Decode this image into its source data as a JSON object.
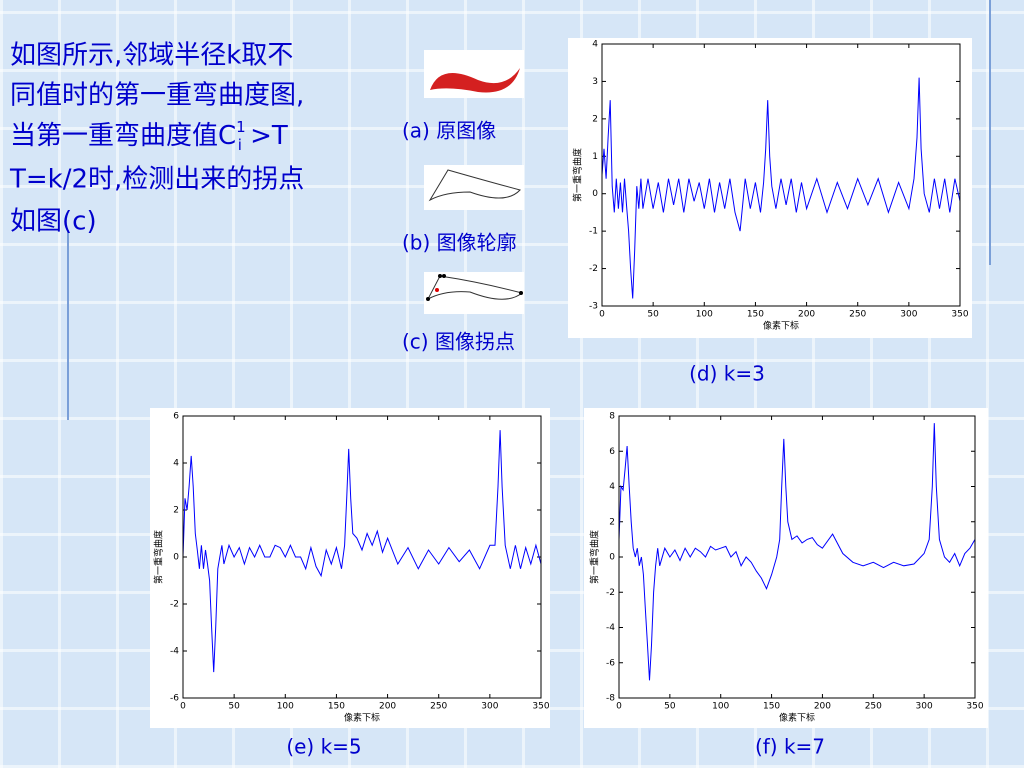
{
  "text": {
    "lines": [
      "如图所示,邻域半径k取不",
      "同值时的第一重弯曲度图,",
      "当第一重弯曲度值C",
      "T=k/2时,检测出来的拐点",
      "如图(c)"
    ],
    "sup": "1",
    "sub": "i",
    "line3_tail": " >T"
  },
  "images": [
    {
      "caption": "(a) 原图像"
    },
    {
      "caption": "(b) 图像轮廓"
    },
    {
      "caption": "(c) 图像拐点"
    }
  ],
  "chart_data": [
    {
      "type": "line",
      "caption": "(d) k=3",
      "xlabel": "像素下标",
      "ylabel": "第一重弯曲度",
      "color": "#0000ff",
      "xlim": [
        0,
        350
      ],
      "xticks": [
        0,
        50,
        100,
        150,
        200,
        250,
        300,
        350
      ],
      "ylim": [
        -3,
        4
      ],
      "yticks": [
        -3,
        -2,
        -1,
        0,
        1,
        2,
        3,
        4
      ],
      "x": [
        0,
        2,
        4,
        6,
        8,
        10,
        12,
        14,
        16,
        18,
        20,
        22,
        24,
        26,
        28,
        30,
        32,
        34,
        36,
        38,
        40,
        45,
        50,
        55,
        60,
        65,
        70,
        75,
        80,
        85,
        90,
        95,
        100,
        105,
        110,
        115,
        120,
        125,
        130,
        135,
        140,
        145,
        150,
        155,
        158,
        160,
        162,
        164,
        166,
        170,
        175,
        180,
        185,
        190,
        195,
        200,
        210,
        220,
        230,
        240,
        250,
        260,
        270,
        280,
        290,
        300,
        305,
        308,
        310,
        312,
        315,
        320,
        325,
        330,
        335,
        340,
        345,
        350
      ],
      "values": [
        0.5,
        1.2,
        0.4,
        1.5,
        2.5,
        0.2,
        -0.5,
        0.4,
        -0.4,
        0.3,
        -0.5,
        0.4,
        -0.3,
        -1,
        -2,
        -2.8,
        -1.5,
        0.2,
        -0.4,
        0.4,
        -0.4,
        0.4,
        -0.4,
        0.3,
        -0.5,
        0.4,
        -0.3,
        0.4,
        -0.5,
        0.4,
        -0.2,
        0.3,
        -0.4,
        0.4,
        -0.5,
        0.3,
        -0.4,
        0.4,
        -0.5,
        -1,
        0.4,
        -0.4,
        0.3,
        -0.5,
        0.3,
        1.2,
        2.5,
        1,
        0.2,
        -0.4,
        0.4,
        -0.3,
        0.4,
        -0.5,
        0.3,
        -0.4,
        0.4,
        -0.5,
        0.3,
        -0.4,
        0.4,
        -0.3,
        0.4,
        -0.5,
        0.3,
        -0.4,
        0.4,
        1.5,
        3.1,
        1.2,
        0,
        -0.5,
        0.4,
        -0.4,
        0.4,
        -0.5,
        0.4,
        -0.2
      ]
    },
    {
      "type": "line",
      "caption": "(e) k=5",
      "xlabel": "像素下标",
      "ylabel": "第一重弯曲度",
      "color": "#0000ff",
      "xlim": [
        0,
        350
      ],
      "xticks": [
        0,
        50,
        100,
        150,
        200,
        250,
        300,
        350
      ],
      "ylim": [
        -6,
        6
      ],
      "yticks": [
        -6,
        -4,
        -2,
        0,
        2,
        4,
        6
      ],
      "x": [
        0,
        2,
        4,
        6,
        8,
        10,
        12,
        14,
        16,
        18,
        20,
        22,
        24,
        26,
        28,
        30,
        32,
        34,
        36,
        38,
        40,
        45,
        50,
        55,
        60,
        65,
        70,
        75,
        80,
        85,
        90,
        95,
        100,
        105,
        110,
        115,
        120,
        125,
        130,
        135,
        140,
        145,
        150,
        155,
        158,
        160,
        162,
        164,
        166,
        170,
        175,
        180,
        185,
        190,
        195,
        200,
        210,
        220,
        230,
        240,
        250,
        260,
        270,
        280,
        290,
        300,
        305,
        308,
        310,
        312,
        315,
        320,
        325,
        330,
        335,
        340,
        345,
        350
      ],
      "values": [
        0,
        2.5,
        2,
        3,
        4.3,
        3,
        1,
        0.3,
        -0.5,
        0.5,
        -0.5,
        0.3,
        -0.3,
        -1,
        -3,
        -4.9,
        -3,
        -0.5,
        0,
        0.5,
        -0.3,
        0.5,
        0,
        0.4,
        -0.3,
        0.4,
        0,
        0.5,
        0,
        0,
        0.5,
        0.4,
        0,
        0.5,
        0,
        0,
        -0.5,
        0.4,
        -0.4,
        -0.8,
        0.3,
        -0.3,
        0.4,
        -0.5,
        0.5,
        2.5,
        4.6,
        2.5,
        1,
        0.8,
        0.3,
        1,
        0.5,
        1.1,
        0.2,
        0.8,
        -0.3,
        0.4,
        -0.5,
        0.3,
        -0.3,
        0.4,
        -0.2,
        0.3,
        -0.5,
        0.5,
        0.5,
        3,
        5.4,
        3,
        0.5,
        -0.5,
        0.5,
        -0.5,
        0.4,
        -0.3,
        0.5,
        -0.3
      ]
    },
    {
      "type": "line",
      "caption": "(f) k=7",
      "xlabel": "像素下标",
      "ylabel": "第一重弯曲度",
      "color": "#0000ff",
      "xlim": [
        0,
        350
      ],
      "xticks": [
        0,
        50,
        100,
        150,
        200,
        250,
        300,
        350
      ],
      "ylim": [
        -8,
        8
      ],
      "yticks": [
        -8,
        -6,
        -4,
        -2,
        0,
        2,
        4,
        6,
        8
      ],
      "x": [
        0,
        2,
        4,
        6,
        8,
        10,
        12,
        14,
        16,
        18,
        20,
        22,
        24,
        26,
        28,
        30,
        32,
        34,
        36,
        38,
        40,
        45,
        50,
        55,
        60,
        65,
        70,
        75,
        80,
        85,
        90,
        95,
        100,
        105,
        110,
        115,
        120,
        125,
        130,
        135,
        140,
        145,
        150,
        155,
        158,
        160,
        162,
        164,
        166,
        170,
        175,
        180,
        185,
        190,
        195,
        200,
        210,
        220,
        230,
        240,
        250,
        260,
        270,
        280,
        290,
        300,
        305,
        308,
        310,
        312,
        315,
        320,
        325,
        330,
        335,
        340,
        345,
        350
      ],
      "values": [
        1,
        4,
        3.8,
        5,
        6.3,
        4,
        2,
        0.5,
        0,
        0.5,
        -0.5,
        0,
        -1,
        -3,
        -5,
        -7,
        -5,
        -2,
        -0.5,
        0.5,
        -0.5,
        0.5,
        0,
        0.4,
        -0.2,
        0.5,
        0,
        0.5,
        0.3,
        0,
        0.6,
        0.4,
        0.5,
        0.6,
        0,
        0.3,
        -0.5,
        0,
        -0.3,
        -0.8,
        -1.2,
        -1.8,
        -1,
        0,
        1,
        4,
        6.7,
        4,
        2,
        1,
        1.2,
        0.8,
        1,
        1.1,
        0.7,
        0.5,
        1.3,
        0.2,
        -0.3,
        -0.5,
        -0.3,
        -0.6,
        -0.3,
        -0.5,
        -0.4,
        0.2,
        1,
        4,
        7.6,
        4,
        1,
        0,
        -0.3,
        0.2,
        -0.5,
        0.2,
        0.5,
        1
      ]
    }
  ]
}
